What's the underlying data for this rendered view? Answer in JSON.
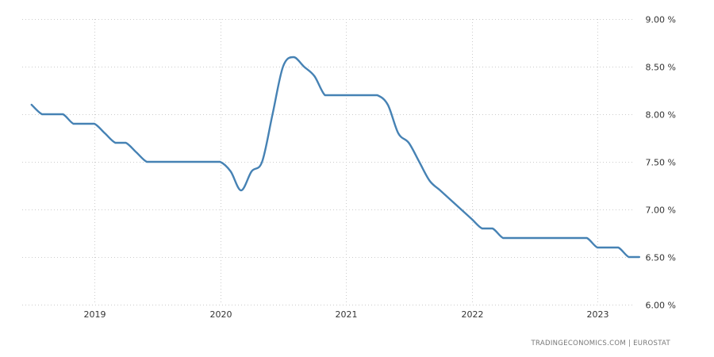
{
  "source": "TRADINGECONOMICS.COM  |  EUROSTAT",
  "colors": {
    "series": "#4682b4",
    "grid": "#cccccc",
    "text": "#333333",
    "source_text": "#777777"
  },
  "chart_data": {
    "type": "line",
    "title": "",
    "xlabel": "",
    "ylabel": "",
    "ylim": [
      6.0,
      9.0
    ],
    "y_ticks": [
      9.0,
      8.5,
      8.0,
      7.5,
      7.0,
      6.5,
      6.0
    ],
    "y_tick_labels": [
      "9.00 %",
      "8.50 %",
      "8.00 %",
      "7.50 %",
      "7.00 %",
      "6.50 %",
      "6.00 %"
    ],
    "x_ticks": [
      "2019",
      "2020",
      "2021",
      "2022",
      "2023"
    ],
    "x_tick_dates": [
      "2019-01",
      "2020-01",
      "2021-01",
      "2022-01",
      "2023-01"
    ],
    "grid": true,
    "y_axis_position": "right",
    "series": [
      {
        "x": [
          "2018-07",
          "2018-08",
          "2018-09",
          "2018-10",
          "2018-11",
          "2018-12",
          "2019-01",
          "2019-02",
          "2019-03",
          "2019-04",
          "2019-05",
          "2019-06",
          "2019-07",
          "2019-08",
          "2019-09",
          "2019-10",
          "2019-11",
          "2019-12",
          "2020-01",
          "2020-02",
          "2020-03",
          "2020-04",
          "2020-05",
          "2020-06",
          "2020-07",
          "2020-08",
          "2020-09",
          "2020-10",
          "2020-11",
          "2020-12",
          "2021-01",
          "2021-02",
          "2021-03",
          "2021-04",
          "2021-05",
          "2021-06",
          "2021-07",
          "2021-08",
          "2021-09",
          "2021-10",
          "2021-11",
          "2021-12",
          "2022-01",
          "2022-02",
          "2022-03",
          "2022-04",
          "2022-05",
          "2022-06",
          "2022-07",
          "2022-08",
          "2022-09",
          "2022-10",
          "2022-11",
          "2022-12",
          "2023-01",
          "2023-02",
          "2023-03",
          "2023-04",
          "2023-05"
        ],
        "values": [
          8.1,
          8.0,
          8.0,
          8.0,
          7.9,
          7.9,
          7.9,
          7.8,
          7.7,
          7.7,
          7.6,
          7.5,
          7.5,
          7.5,
          7.5,
          7.5,
          7.5,
          7.5,
          7.5,
          7.4,
          7.2,
          7.4,
          7.5,
          8.0,
          8.5,
          8.6,
          8.5,
          8.4,
          8.2,
          8.2,
          8.2,
          8.2,
          8.2,
          8.2,
          8.1,
          7.8,
          7.7,
          7.5,
          7.3,
          7.2,
          7.1,
          7.0,
          6.9,
          6.8,
          6.8,
          6.7,
          6.7,
          6.7,
          6.7,
          6.7,
          6.7,
          6.7,
          6.7,
          6.7,
          6.6,
          6.6,
          6.6,
          6.5,
          6.5
        ]
      }
    ]
  }
}
